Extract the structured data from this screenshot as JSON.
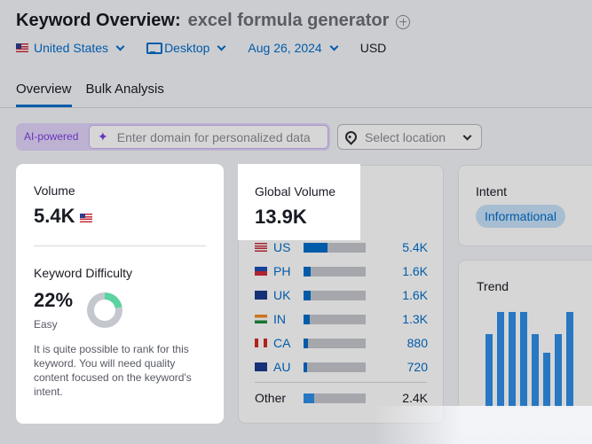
{
  "header": {
    "title": "Keyword Overview:",
    "keyword": "excel formula generator"
  },
  "filters": {
    "country": "United States",
    "device": "Desktop",
    "date": "Aug 26, 2024",
    "currency": "USD"
  },
  "tabs": [
    {
      "label": "Overview"
    },
    {
      "label": "Bulk Analysis"
    }
  ],
  "ai": {
    "badge": "AI-powered",
    "placeholder": "Enter domain for personalized data"
  },
  "location": {
    "placeholder": "Select location"
  },
  "volume": {
    "label": "Volume",
    "value": "5.4K"
  },
  "difficulty": {
    "label": "Keyword Difficulty",
    "value": "22%",
    "percent": 22,
    "level": "Easy",
    "description": "It is quite possible to rank for this keyword. You will need quality content focused on the keyword's intent."
  },
  "global_volume": {
    "label": "Global Volume",
    "value": "13.9K",
    "countries": [
      {
        "code": "US",
        "value": "5.4K",
        "fill": 0.39
      },
      {
        "code": "PH",
        "value": "1.6K",
        "fill": 0.12
      },
      {
        "code": "UK",
        "value": "1.6K",
        "fill": 0.12
      },
      {
        "code": "IN",
        "value": "1.3K",
        "fill": 0.1
      },
      {
        "code": "CA",
        "value": "880",
        "fill": 0.07
      },
      {
        "code": "AU",
        "value": "720",
        "fill": 0.06
      }
    ],
    "other": {
      "label": "Other",
      "value": "2.4K",
      "fill": 0.17
    }
  },
  "intent": {
    "label": "Intent",
    "value": "Informational"
  },
  "trend": {
    "label": "Trend",
    "levels": [
      0.74,
      0.96,
      0.96,
      0.96,
      0.74,
      0.55,
      0.74,
      0.96
    ]
  },
  "colors": {
    "accent": "#006dca",
    "ai": "#7c3fe0",
    "easy": "#5ad3a0"
  }
}
